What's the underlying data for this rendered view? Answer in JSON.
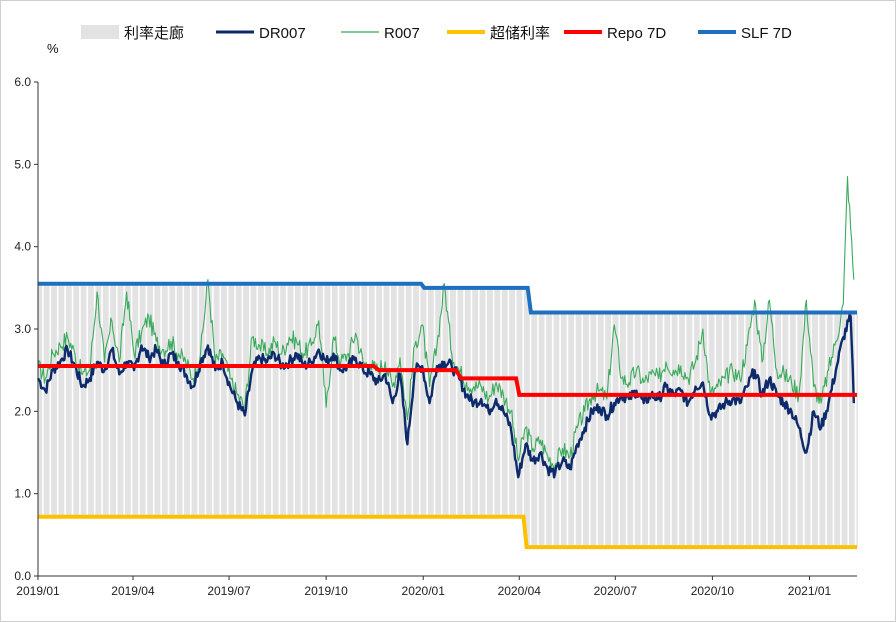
{
  "chart_data": {
    "type": "line",
    "y_unit": "%",
    "ylim": [
      0.0,
      6.0
    ],
    "y_ticks": [
      "0.0",
      "1.0",
      "2.0",
      "3.0",
      "4.0",
      "5.0",
      "6.0"
    ],
    "x_range": [
      "2019-01-01",
      "2021-02-15"
    ],
    "x_ticks": [
      {
        "date": "2019-01-01",
        "label": "2019/01"
      },
      {
        "date": "2019-04-01",
        "label": "2019/04"
      },
      {
        "date": "2019-07-01",
        "label": "2019/07"
      },
      {
        "date": "2019-10-01",
        "label": "2019/10"
      },
      {
        "date": "2020-01-01",
        "label": "2020/01"
      },
      {
        "date": "2020-04-01",
        "label": "2020/04"
      },
      {
        "date": "2020-07-01",
        "label": "2020/07"
      },
      {
        "date": "2020-10-01",
        "label": "2020/10"
      },
      {
        "date": "2021-01-01",
        "label": "2021/01"
      }
    ],
    "grid": false,
    "legend_position": "top",
    "legend": [
      {
        "key": "corridor",
        "label": "利率走廊",
        "color": "#e3e3e3",
        "kind": "band"
      },
      {
        "key": "dr007",
        "label": "DR007",
        "color": "#0d2a6b",
        "kind": "line"
      },
      {
        "key": "r007",
        "label": "R007",
        "color": "#3aaa5c",
        "kind": "line"
      },
      {
        "key": "ioer",
        "label": "超储利率",
        "color": "#ffc000",
        "kind": "line"
      },
      {
        "key": "repo7d",
        "label": "Repo 7D",
        "color": "#ff0000",
        "kind": "line"
      },
      {
        "key": "slf7d",
        "label": "SLF 7D",
        "color": "#1f6fc1",
        "kind": "line"
      }
    ],
    "step_series": {
      "slf7d": [
        [
          "2019-01-01",
          3.55
        ],
        [
          "2019-12-30",
          3.55
        ],
        [
          "2020-01-02",
          3.5
        ],
        [
          "2020-04-09",
          3.5
        ],
        [
          "2020-04-12",
          3.2
        ],
        [
          "2021-02-15",
          3.2
        ]
      ],
      "repo7d": [
        [
          "2019-01-01",
          2.55
        ],
        [
          "2019-11-15",
          2.55
        ],
        [
          "2019-11-20",
          2.5
        ],
        [
          "2020-02-01",
          2.5
        ],
        [
          "2020-02-06",
          2.4
        ],
        [
          "2020-03-29",
          2.4
        ],
        [
          "2020-04-01",
          2.2
        ],
        [
          "2021-02-15",
          2.2
        ]
      ],
      "ioer": [
        [
          "2019-01-01",
          0.72
        ],
        [
          "2020-04-05",
          0.72
        ],
        [
          "2020-04-08",
          0.35
        ],
        [
          "2021-02-15",
          0.35
        ]
      ]
    },
    "dr007_anchors": [
      [
        "2019-01-01",
        2.4
      ],
      [
        "2019-01-08",
        2.25
      ],
      [
        "2019-01-15",
        2.5
      ],
      [
        "2019-01-22",
        2.6
      ],
      [
        "2019-01-29",
        2.75
      ],
      [
        "2019-02-05",
        2.55
      ],
      [
        "2019-02-12",
        2.3
      ],
      [
        "2019-02-19",
        2.4
      ],
      [
        "2019-02-26",
        2.6
      ],
      [
        "2019-03-05",
        2.5
      ],
      [
        "2019-03-12",
        2.75
      ],
      [
        "2019-03-19",
        2.45
      ],
      [
        "2019-03-26",
        2.6
      ],
      [
        "2019-04-02",
        2.5
      ],
      [
        "2019-04-09",
        2.8
      ],
      [
        "2019-04-16",
        2.65
      ],
      [
        "2019-04-23",
        2.75
      ],
      [
        "2019-04-30",
        2.55
      ],
      [
        "2019-05-07",
        2.7
      ],
      [
        "2019-05-14",
        2.6
      ],
      [
        "2019-05-21",
        2.45
      ],
      [
        "2019-05-28",
        2.3
      ],
      [
        "2019-06-04",
        2.6
      ],
      [
        "2019-06-11",
        2.8
      ],
      [
        "2019-06-18",
        2.5
      ],
      [
        "2019-06-25",
        2.6
      ],
      [
        "2019-07-02",
        2.3
      ],
      [
        "2019-07-09",
        2.1
      ],
      [
        "2019-07-16",
        1.95
      ],
      [
        "2019-07-23",
        2.5
      ],
      [
        "2019-07-30",
        2.65
      ],
      [
        "2019-08-06",
        2.6
      ],
      [
        "2019-08-13",
        2.7
      ],
      [
        "2019-08-20",
        2.55
      ],
      [
        "2019-08-27",
        2.6
      ],
      [
        "2019-09-03",
        2.7
      ],
      [
        "2019-09-10",
        2.55
      ],
      [
        "2019-09-17",
        2.6
      ],
      [
        "2019-09-24",
        2.75
      ],
      [
        "2019-10-01",
        2.6
      ],
      [
        "2019-10-08",
        2.7
      ],
      [
        "2019-10-15",
        2.5
      ],
      [
        "2019-10-22",
        2.55
      ],
      [
        "2019-10-29",
        2.65
      ],
      [
        "2019-11-05",
        2.5
      ],
      [
        "2019-11-12",
        2.45
      ],
      [
        "2019-11-19",
        2.35
      ],
      [
        "2019-11-26",
        2.45
      ],
      [
        "2019-12-03",
        2.1
      ],
      [
        "2019-12-10",
        2.45
      ],
      [
        "2019-12-17",
        1.6
      ],
      [
        "2019-12-24",
        2.5
      ],
      [
        "2019-12-31",
        2.55
      ],
      [
        "2020-01-07",
        2.1
      ],
      [
        "2020-01-14",
        2.55
      ],
      [
        "2020-01-21",
        2.6
      ],
      [
        "2020-01-28",
        2.55
      ],
      [
        "2020-02-04",
        2.4
      ],
      [
        "2020-02-11",
        2.2
      ],
      [
        "2020-02-18",
        2.1
      ],
      [
        "2020-02-25",
        2.15
      ],
      [
        "2020-03-03",
        2.0
      ],
      [
        "2020-03-10",
        2.15
      ],
      [
        "2020-03-17",
        2.0
      ],
      [
        "2020-03-24",
        1.8
      ],
      [
        "2020-03-31",
        1.2
      ],
      [
        "2020-04-07",
        1.6
      ],
      [
        "2020-04-14",
        1.4
      ],
      [
        "2020-04-21",
        1.5
      ],
      [
        "2020-04-28",
        1.3
      ],
      [
        "2020-05-05",
        1.25
      ],
      [
        "2020-05-12",
        1.4
      ],
      [
        "2020-05-19",
        1.3
      ],
      [
        "2020-05-26",
        1.6
      ],
      [
        "2020-06-02",
        1.8
      ],
      [
        "2020-06-09",
        2.0
      ],
      [
        "2020-06-16",
        2.05
      ],
      [
        "2020-06-23",
        1.95
      ],
      [
        "2020-06-30",
        2.1
      ],
      [
        "2020-07-07",
        2.2
      ],
      [
        "2020-07-14",
        2.15
      ],
      [
        "2020-07-21",
        2.25
      ],
      [
        "2020-07-28",
        2.1
      ],
      [
        "2020-08-04",
        2.2
      ],
      [
        "2020-08-11",
        2.15
      ],
      [
        "2020-08-18",
        2.3
      ],
      [
        "2020-08-25",
        2.2
      ],
      [
        "2020-09-01",
        2.25
      ],
      [
        "2020-09-08",
        2.1
      ],
      [
        "2020-09-15",
        2.3
      ],
      [
        "2020-09-22",
        2.35
      ],
      [
        "2020-09-29",
        1.95
      ],
      [
        "2020-10-06",
        2.0
      ],
      [
        "2020-10-13",
        2.1
      ],
      [
        "2020-10-20",
        2.15
      ],
      [
        "2020-10-27",
        2.1
      ],
      [
        "2020-11-03",
        2.3
      ],
      [
        "2020-11-10",
        2.5
      ],
      [
        "2020-11-17",
        2.2
      ],
      [
        "2020-11-24",
        2.4
      ],
      [
        "2020-12-01",
        2.2
      ],
      [
        "2020-12-08",
        2.1
      ],
      [
        "2020-12-15",
        2.0
      ],
      [
        "2020-12-22",
        1.8
      ],
      [
        "2020-12-29",
        1.5
      ],
      [
        "2021-01-05",
        2.0
      ],
      [
        "2021-01-12",
        1.8
      ],
      [
        "2021-01-19",
        2.1
      ],
      [
        "2021-01-26",
        2.5
      ],
      [
        "2021-02-02",
        2.9
      ],
      [
        "2021-02-09",
        3.15
      ],
      [
        "2021-02-12",
        2.1
      ]
    ],
    "r007_anchors": [
      [
        "2019-01-01",
        2.55
      ],
      [
        "2019-01-08",
        2.4
      ],
      [
        "2019-01-15",
        2.7
      ],
      [
        "2019-01-22",
        2.8
      ],
      [
        "2019-01-29",
        2.9
      ],
      [
        "2019-02-05",
        2.7
      ],
      [
        "2019-02-12",
        2.45
      ],
      [
        "2019-02-19",
        2.5
      ],
      [
        "2019-02-26",
        3.45
      ],
      [
        "2019-03-05",
        2.6
      ],
      [
        "2019-03-12",
        3.1
      ],
      [
        "2019-03-19",
        2.6
      ],
      [
        "2019-03-26",
        3.45
      ],
      [
        "2019-04-02",
        2.7
      ],
      [
        "2019-04-09",
        2.95
      ],
      [
        "2019-04-16",
        3.15
      ],
      [
        "2019-04-23",
        2.85
      ],
      [
        "2019-04-30",
        2.75
      ],
      [
        "2019-05-07",
        2.85
      ],
      [
        "2019-05-14",
        2.7
      ],
      [
        "2019-05-21",
        2.6
      ],
      [
        "2019-05-28",
        2.4
      ],
      [
        "2019-06-04",
        2.7
      ],
      [
        "2019-06-11",
        3.6
      ],
      [
        "2019-06-18",
        2.6
      ],
      [
        "2019-06-25",
        2.7
      ],
      [
        "2019-07-02",
        2.4
      ],
      [
        "2019-07-09",
        2.2
      ],
      [
        "2019-07-16",
        2.05
      ],
      [
        "2019-07-23",
        2.9
      ],
      [
        "2019-07-30",
        2.8
      ],
      [
        "2019-08-06",
        2.7
      ],
      [
        "2019-08-13",
        2.85
      ],
      [
        "2019-08-20",
        2.7
      ],
      [
        "2019-08-27",
        2.9
      ],
      [
        "2019-09-03",
        2.85
      ],
      [
        "2019-09-10",
        2.7
      ],
      [
        "2019-09-17",
        2.8
      ],
      [
        "2019-09-24",
        3.1
      ],
      [
        "2019-10-01",
        2.05
      ],
      [
        "2019-10-08",
        2.9
      ],
      [
        "2019-10-15",
        2.6
      ],
      [
        "2019-10-22",
        2.7
      ],
      [
        "2019-10-29",
        2.95
      ],
      [
        "2019-11-05",
        2.6
      ],
      [
        "2019-11-12",
        2.55
      ],
      [
        "2019-11-19",
        2.5
      ],
      [
        "2019-11-26",
        2.6
      ],
      [
        "2019-12-03",
        2.3
      ],
      [
        "2019-12-10",
        2.65
      ],
      [
        "2019-12-17",
        1.9
      ],
      [
        "2019-12-24",
        2.8
      ],
      [
        "2019-12-31",
        3.05
      ],
      [
        "2020-01-07",
        2.3
      ],
      [
        "2020-01-14",
        2.8
      ],
      [
        "2020-01-21",
        3.55
      ],
      [
        "2020-01-28",
        2.7
      ],
      [
        "2020-02-04",
        2.5
      ],
      [
        "2020-02-11",
        2.35
      ],
      [
        "2020-02-18",
        2.3
      ],
      [
        "2020-02-25",
        2.3
      ],
      [
        "2020-03-03",
        2.15
      ],
      [
        "2020-03-10",
        2.35
      ],
      [
        "2020-03-17",
        2.2
      ],
      [
        "2020-03-24",
        2.0
      ],
      [
        "2020-03-31",
        1.4
      ],
      [
        "2020-04-07",
        1.8
      ],
      [
        "2020-04-14",
        1.55
      ],
      [
        "2020-04-21",
        1.65
      ],
      [
        "2020-04-28",
        1.45
      ],
      [
        "2020-05-05",
        1.35
      ],
      [
        "2020-05-12",
        1.55
      ],
      [
        "2020-05-19",
        1.45
      ],
      [
        "2020-05-26",
        1.8
      ],
      [
        "2020-06-02",
        2.0
      ],
      [
        "2020-06-09",
        2.2
      ],
      [
        "2020-06-16",
        2.25
      ],
      [
        "2020-06-23",
        2.15
      ],
      [
        "2020-06-30",
        3.05
      ],
      [
        "2020-07-07",
        2.4
      ],
      [
        "2020-07-14",
        2.35
      ],
      [
        "2020-07-21",
        2.5
      ],
      [
        "2020-07-28",
        2.35
      ],
      [
        "2020-08-04",
        2.45
      ],
      [
        "2020-08-11",
        2.4
      ],
      [
        "2020-08-18",
        2.6
      ],
      [
        "2020-08-25",
        2.5
      ],
      [
        "2020-09-01",
        2.55
      ],
      [
        "2020-09-08",
        2.4
      ],
      [
        "2020-09-15",
        2.6
      ],
      [
        "2020-09-22",
        3.0
      ],
      [
        "2020-09-29",
        2.2
      ],
      [
        "2020-10-06",
        2.3
      ],
      [
        "2020-10-13",
        2.4
      ],
      [
        "2020-10-20",
        2.5
      ],
      [
        "2020-10-27",
        2.4
      ],
      [
        "2020-11-03",
        2.8
      ],
      [
        "2020-11-10",
        3.35
      ],
      [
        "2020-11-17",
        2.6
      ],
      [
        "2020-11-24",
        3.35
      ],
      [
        "2020-12-01",
        2.5
      ],
      [
        "2020-12-08",
        2.45
      ],
      [
        "2020-12-15",
        2.35
      ],
      [
        "2020-12-22",
        2.2
      ],
      [
        "2020-12-29",
        3.35
      ],
      [
        "2021-01-05",
        2.3
      ],
      [
        "2021-01-12",
        2.1
      ],
      [
        "2021-01-19",
        2.5
      ],
      [
        "2021-01-26",
        2.85
      ],
      [
        "2021-02-02",
        3.3
      ],
      [
        "2021-02-06",
        4.85
      ],
      [
        "2021-02-12",
        3.6
      ]
    ]
  }
}
